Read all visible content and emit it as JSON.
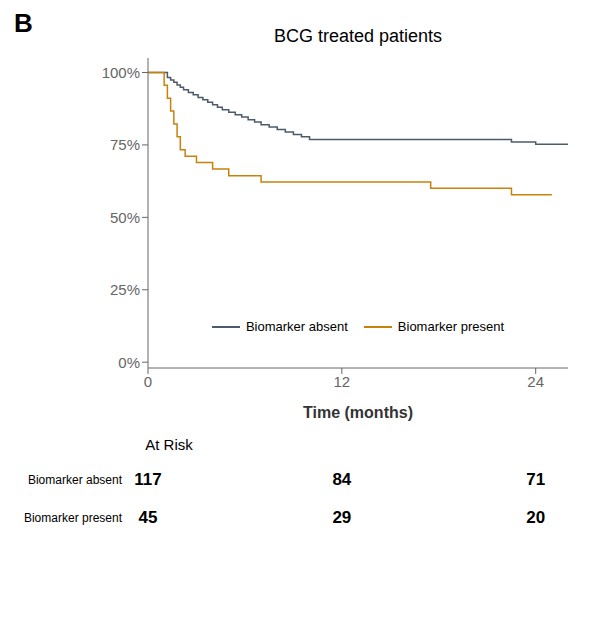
{
  "chart_data": {
    "type": "step",
    "title": "BCG treated patients",
    "panel_label": "B",
    "xlabel": "Time (months)",
    "xlim": [
      0,
      26
    ],
    "xticks": [
      0,
      12,
      24
    ],
    "ylim": [
      -0.02,
      1.05
    ],
    "yticks": [
      {
        "value": 0.0,
        "label": "0%"
      },
      {
        "value": 0.25,
        "label": "25%"
      },
      {
        "value": 0.5,
        "label": "50%"
      },
      {
        "value": 0.75,
        "label": "75%"
      },
      {
        "value": 1.0,
        "label": "100%"
      }
    ],
    "grid": false,
    "legend": "lower center",
    "series": [
      {
        "name": "Biomarker absent",
        "color": "#4d5a6a",
        "x": [
          0,
          1.0,
          1.2,
          1.4,
          1.6,
          1.8,
          2.0,
          2.2,
          2.5,
          2.8,
          3.1,
          3.4,
          3.7,
          4.0,
          4.3,
          4.6,
          5.0,
          5.4,
          5.8,
          6.2,
          6.6,
          7.0,
          7.5,
          8.0,
          8.5,
          9.0,
          9.5,
          10.0,
          10.5,
          11.0,
          11.5,
          12.0,
          13.0,
          14.0,
          15.5,
          17.0,
          18.0,
          21.5,
          22.5,
          24.0,
          26.0
        ],
        "values": [
          1.0,
          1.0,
          0.983,
          0.974,
          0.966,
          0.957,
          0.949,
          0.94,
          0.931,
          0.923,
          0.914,
          0.906,
          0.897,
          0.889,
          0.88,
          0.871,
          0.863,
          0.854,
          0.846,
          0.837,
          0.829,
          0.82,
          0.812,
          0.803,
          0.795,
          0.786,
          0.778,
          0.769,
          0.769,
          0.769,
          0.769,
          0.769,
          0.769,
          0.769,
          0.769,
          0.769,
          0.769,
          0.769,
          0.76,
          0.752,
          0.752
        ]
      },
      {
        "name": "Biomarker present",
        "color": "#c8820a",
        "x": [
          0,
          0.8,
          1.0,
          1.2,
          1.4,
          1.6,
          1.8,
          2.0,
          2.3,
          2.6,
          3.0,
          3.5,
          4.0,
          4.5,
          5.0,
          5.5,
          6.0,
          7.0,
          8.0,
          9.0,
          10.0,
          11.0,
          12.0,
          13.0,
          14.5,
          16.0,
          17.5,
          19.0,
          20.5,
          22.0,
          22.5,
          25.0
        ],
        "values": [
          1.0,
          1.0,
          0.956,
          0.911,
          0.867,
          0.822,
          0.778,
          0.733,
          0.711,
          0.711,
          0.689,
          0.689,
          0.667,
          0.667,
          0.644,
          0.644,
          0.644,
          0.622,
          0.622,
          0.622,
          0.622,
          0.622,
          0.622,
          0.622,
          0.622,
          0.622,
          0.6,
          0.6,
          0.6,
          0.6,
          0.578,
          0.578
        ]
      }
    ],
    "at_risk": {
      "label": "At Risk",
      "times": [
        0,
        12,
        24
      ],
      "rows": [
        {
          "label": "Biomarker absent",
          "values": [
            117,
            84,
            71
          ]
        },
        {
          "label": "Biomarker present",
          "values": [
            45,
            29,
            20
          ]
        }
      ]
    }
  }
}
